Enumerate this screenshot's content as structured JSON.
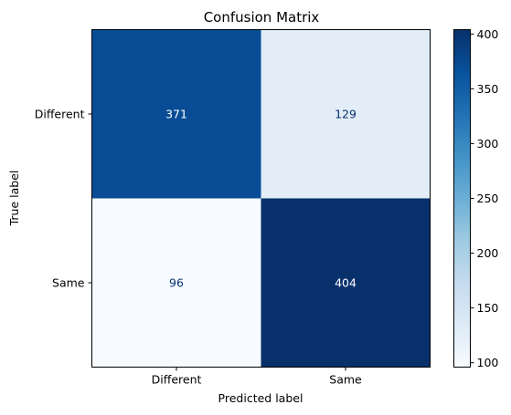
{
  "chart_data": {
    "type": "heatmap",
    "title": "Confusion Matrix",
    "xlabel": "Predicted label",
    "ylabel": "True label",
    "x_categories": [
      "Different",
      "Same"
    ],
    "y_categories": [
      "Different",
      "Same"
    ],
    "values": [
      [
        371,
        129
      ],
      [
        96,
        404
      ]
    ],
    "cell_labels": [
      "371",
      "129",
      "96",
      "404"
    ],
    "colormap": "Blues",
    "colorbar": {
      "vmin": 96,
      "vmax": 404,
      "ticks": [
        100,
        150,
        200,
        250,
        300,
        350,
        400
      ],
      "tick_labels": [
        "100",
        "150",
        "200",
        "250",
        "300",
        "350",
        "400"
      ]
    },
    "grid": false
  }
}
